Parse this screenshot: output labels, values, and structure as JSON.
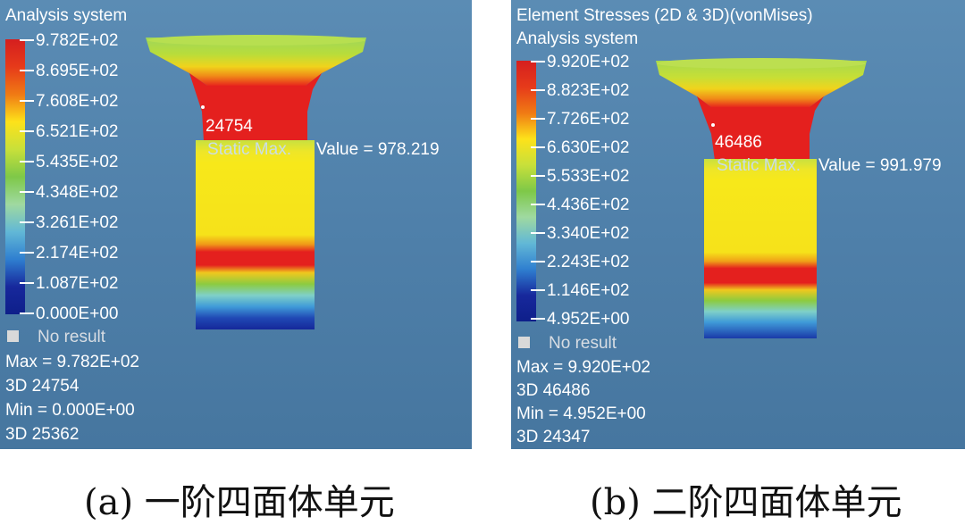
{
  "panel_a": {
    "title": "Analysis system",
    "legend": [
      "9.782E+02",
      "8.695E+02",
      "7.608E+02",
      "6.521E+02",
      "5.435E+02",
      "4.348E+02",
      "3.261E+02",
      "2.174E+02",
      "1.087E+02",
      "0.000E+00"
    ],
    "no_result": "No result",
    "max": "Max = 9.782E+02",
    "max_el": "3D 24754",
    "min": "Min = 0.000E+00",
    "min_el": "3D 25362",
    "node_label": "24754",
    "static_prefix": "Static Max.",
    "static_value": "Value =  978.219"
  },
  "panel_b": {
    "header": "Element Stresses (2D & 3D)(vonMises)",
    "title": "Analysis system",
    "legend": [
      "9.920E+02",
      "8.823E+02",
      "7.726E+02",
      "6.630E+02",
      "5.533E+02",
      "4.436E+02",
      "3.340E+02",
      "2.243E+02",
      "1.146E+02",
      "4.952E+00"
    ],
    "no_result": "No result",
    "max": "Max = 9.920E+02",
    "max_el": "3D 46486",
    "min": "Min = 4.952E+00",
    "min_el": "3D 24347",
    "node_label": "46486",
    "static_prefix": "Static Max.",
    "static_value": "Value =  991.979"
  },
  "captions": {
    "a": "(a)  一阶四面体单元",
    "b": "(b)  二阶四面体单元"
  },
  "colors": {
    "background": "#4f80aa",
    "red": "#e8201c",
    "yellow": "#f5e51c",
    "green": "#8ecb3a",
    "blue": "#1a3aa8"
  }
}
